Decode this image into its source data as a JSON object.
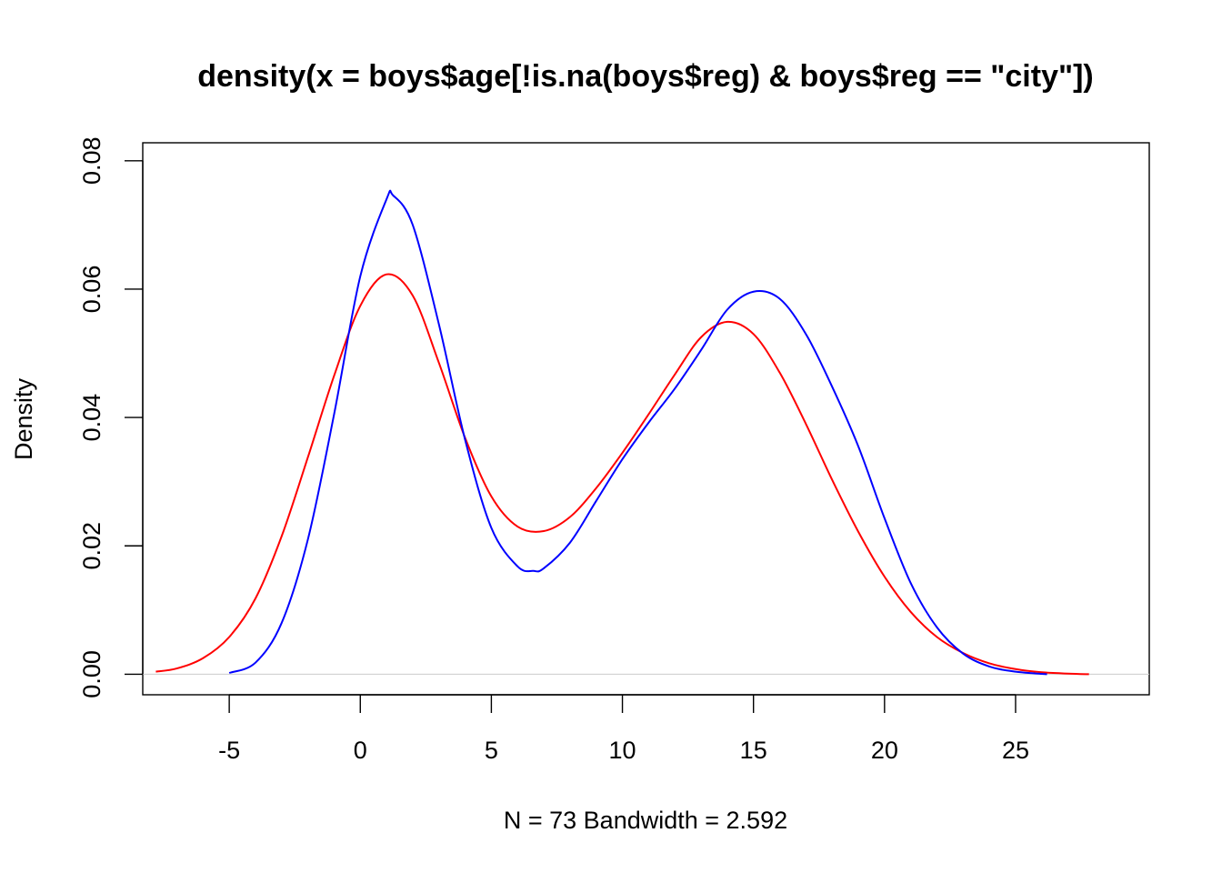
{
  "chart_data": {
    "type": "line",
    "title": "density(x = boys$age[!is.na(boys$reg) & boys$reg == \"city\"])",
    "xlabel": "N = 73   Bandwidth = 2.592",
    "ylabel": "Density",
    "xlim": [
      -8.3,
      30.1
    ],
    "ylim": [
      -0.0032,
      0.0828
    ],
    "x_ticks": [
      -5,
      0,
      5,
      10,
      15,
      20,
      25
    ],
    "x_tick_labels": [
      "-5",
      "0",
      "5",
      "10",
      "15",
      "20",
      "25"
    ],
    "y_ticks": [
      0,
      0.02,
      0.04,
      0.06,
      0.08
    ],
    "y_tick_labels": [
      "0.00",
      "0.02",
      "0.04",
      "0.06",
      "0.08"
    ],
    "zero_line": true,
    "grid": false,
    "legend": "none",
    "series": [
      {
        "color": "#ff0000",
        "x": [
          -7.8,
          -7,
          -6,
          -5,
          -4,
          -3,
          -2,
          -1,
          0,
          1,
          2,
          3,
          4,
          5,
          6,
          7,
          8,
          9,
          10,
          11,
          12,
          13,
          14,
          15,
          16,
          17,
          18,
          19,
          20,
          21,
          22,
          23,
          24,
          25,
          26,
          27,
          27.8
        ],
        "y": [
          0.0004,
          0.0009,
          0.0025,
          0.0058,
          0.0118,
          0.0215,
          0.0338,
          0.0465,
          0.0574,
          0.0623,
          0.059,
          0.0485,
          0.0368,
          0.0277,
          0.023,
          0.0223,
          0.0245,
          0.029,
          0.0345,
          0.0405,
          0.0467,
          0.0525,
          0.0549,
          0.053,
          0.047,
          0.039,
          0.0303,
          0.0222,
          0.0152,
          0.0097,
          0.0058,
          0.0033,
          0.0017,
          0.0008,
          0.0003,
          0.0001,
          0.0
        ]
      },
      {
        "color": "#0000ff",
        "x": [
          -5,
          -4,
          -3,
          -2,
          -1,
          0,
          1,
          1.25,
          2,
          3,
          4,
          5,
          6,
          6.6,
          7,
          8,
          9,
          10,
          11,
          12,
          13,
          14,
          15,
          16,
          17,
          18,
          19,
          20,
          21,
          22,
          23,
          24,
          25,
          26.2
        ],
        "y": [
          0.0002,
          0.0018,
          0.008,
          0.021,
          0.0405,
          0.062,
          0.074,
          0.0746,
          0.07,
          0.0545,
          0.0365,
          0.0228,
          0.0168,
          0.0161,
          0.0165,
          0.0205,
          0.027,
          0.0335,
          0.0392,
          0.0445,
          0.0505,
          0.0568,
          0.0596,
          0.0585,
          0.053,
          0.0448,
          0.0355,
          0.0243,
          0.0142,
          0.0073,
          0.0032,
          0.0012,
          0.0004,
          0.0
        ]
      }
    ]
  }
}
